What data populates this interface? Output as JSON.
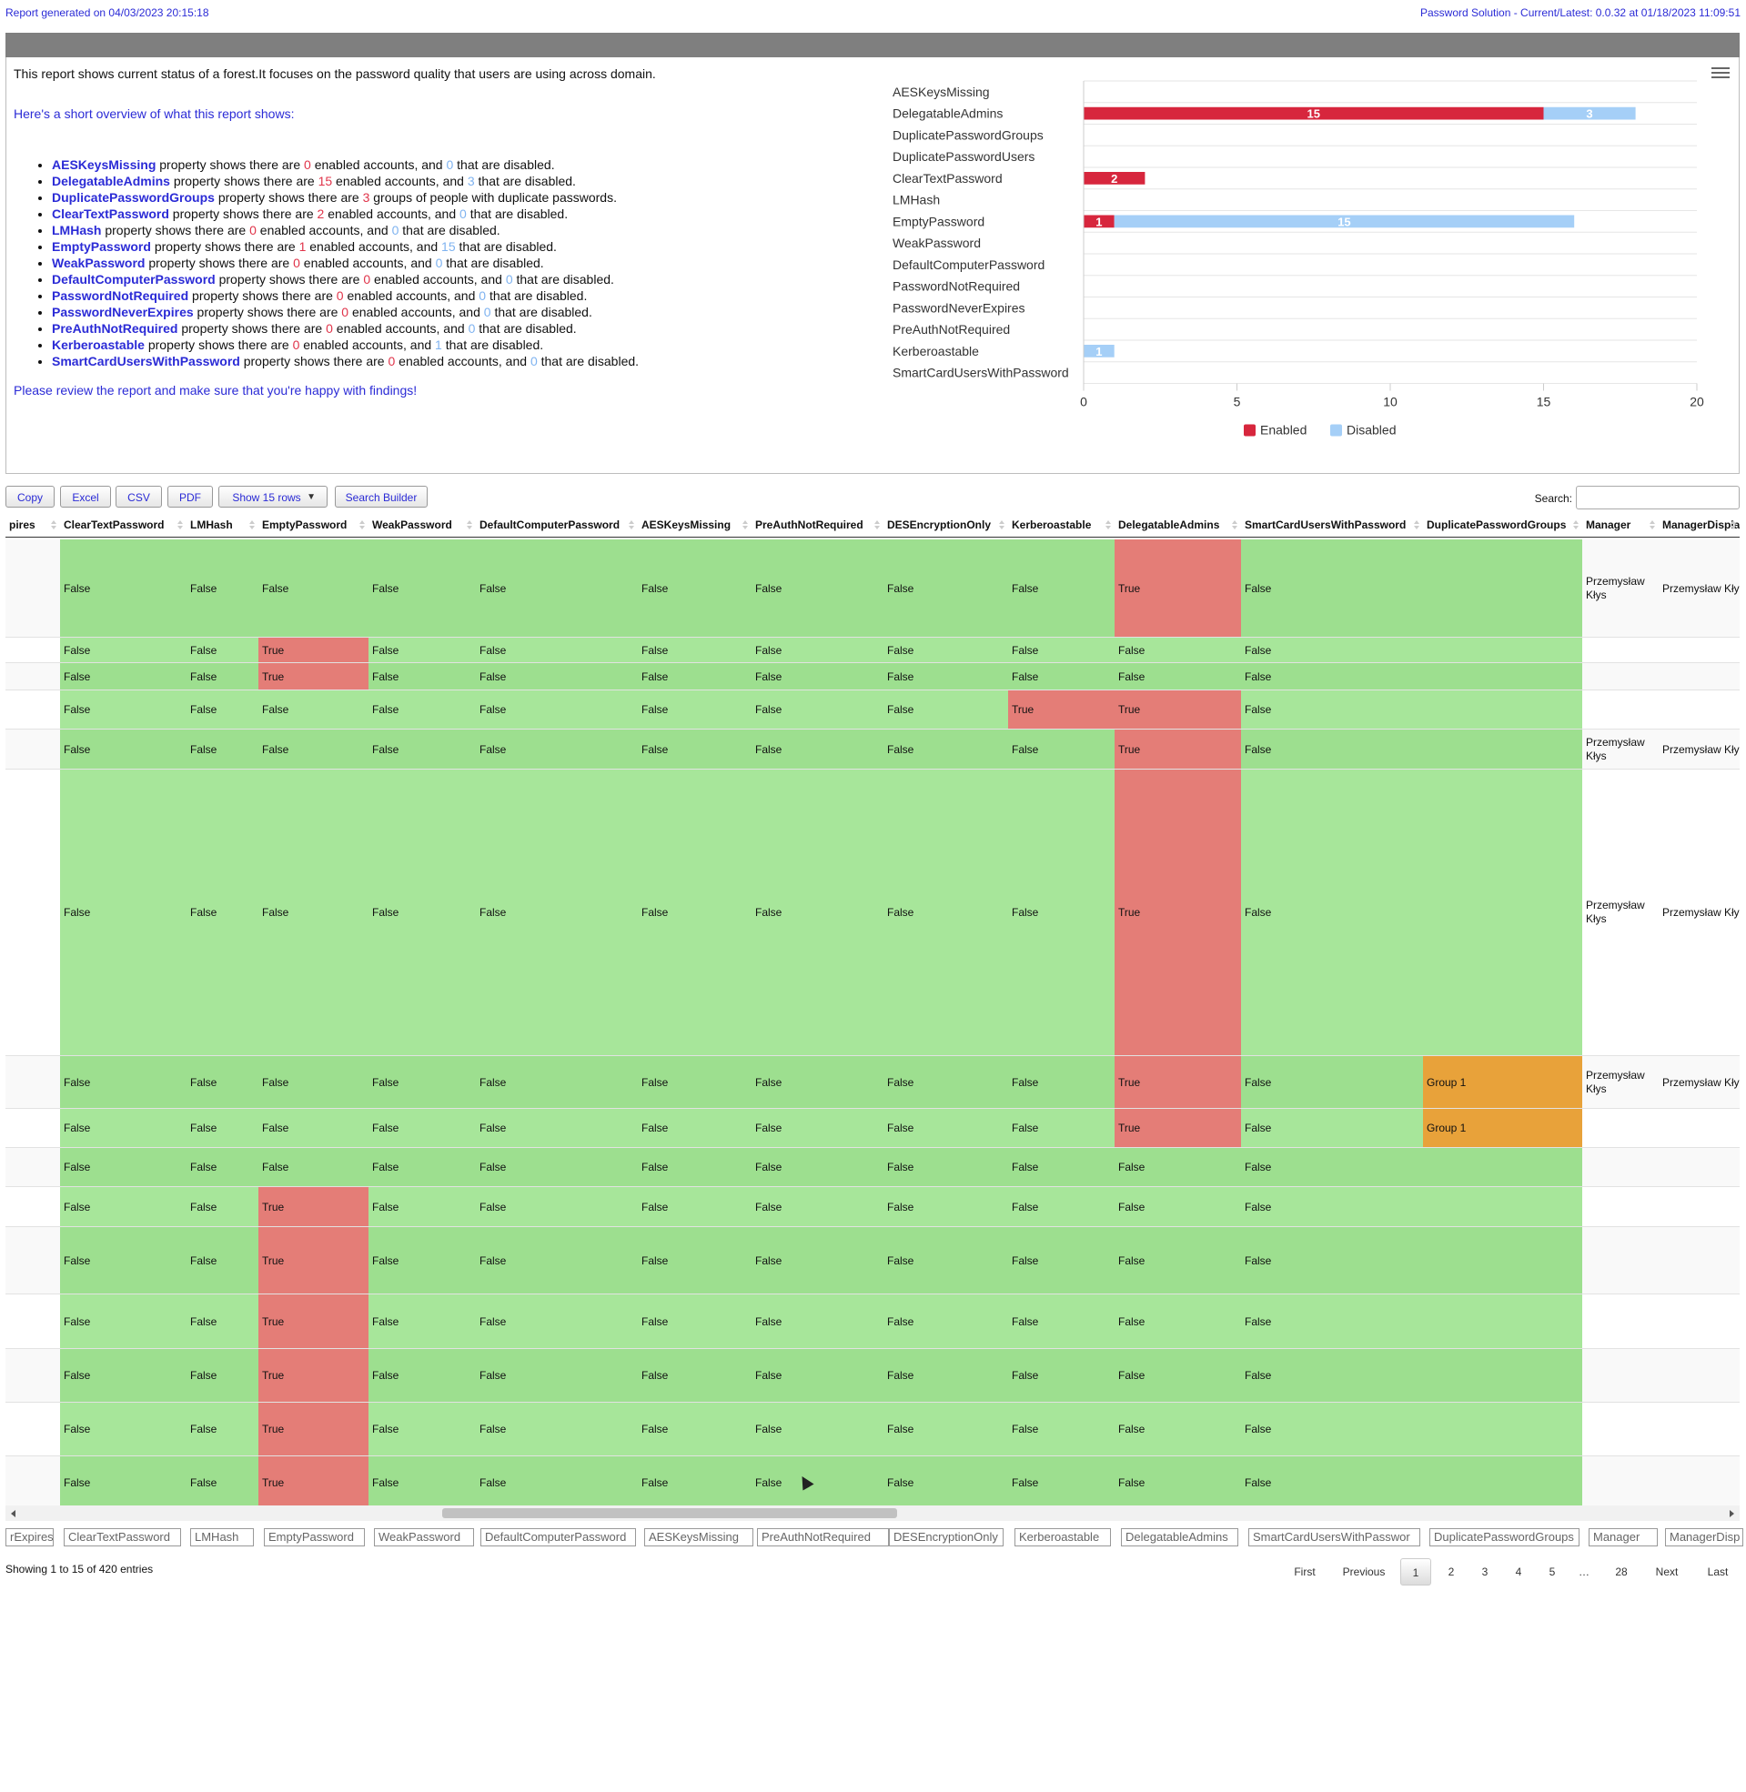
{
  "header": {
    "generated": "Report generated on 04/03/2023 20:15:18",
    "solution": "Password Solution - Current/Latest: 0.0.32 at 01/18/2023 11:09:51"
  },
  "summary": {
    "intro": "This report shows current status of a forest.It focuses on the password quality that users are using across domain.",
    "overview_heading": "Here's a short overview of what this report shows:",
    "text_property_shows": "property shows there are",
    "text_enabled_and": "enabled accounts, and",
    "text_disabled": "that are disabled.",
    "text_groups_with_dup": "groups of people with duplicate passwords.",
    "items": [
      {
        "name": "AESKeysMissing",
        "enabled": "0",
        "disabled": "0"
      },
      {
        "name": "DelegatableAdmins",
        "enabled": "15",
        "disabled": "3"
      },
      {
        "name": "DuplicatePasswordGroups",
        "groups": "3"
      },
      {
        "name": "ClearTextPassword",
        "enabled": "2",
        "disabled": "0"
      },
      {
        "name": "LMHash",
        "enabled": "0",
        "disabled": "0"
      },
      {
        "name": "EmptyPassword",
        "enabled": "1",
        "disabled": "15"
      },
      {
        "name": "WeakPassword",
        "enabled": "0",
        "disabled": "0"
      },
      {
        "name": "DefaultComputerPassword",
        "enabled": "0",
        "disabled": "0"
      },
      {
        "name": "PasswordNotRequired",
        "enabled": "0",
        "disabled": "0"
      },
      {
        "name": "PasswordNeverExpires",
        "enabled": "0",
        "disabled": "0"
      },
      {
        "name": "PreAuthNotRequired",
        "enabled": "0",
        "disabled": "0"
      },
      {
        "name": "Kerberoastable",
        "enabled": "0",
        "disabled": "1"
      },
      {
        "name": "SmartCardUsersWithPassword",
        "enabled": "0",
        "disabled": "0"
      }
    ],
    "review": "Please review the report and make sure that you're happy with findings!"
  },
  "chart_data": {
    "type": "bar",
    "orientation": "horizontal",
    "stacked": true,
    "categories": [
      "AESKeysMissing",
      "DelegatableAdmins",
      "DuplicatePasswordGroups",
      "DuplicatePasswordUsers",
      "ClearTextPassword",
      "LMHash",
      "EmptyPassword",
      "WeakPassword",
      "DefaultComputerPassword",
      "PasswordNotRequired",
      "PasswordNeverExpires",
      "PreAuthNotRequired",
      "Kerberoastable",
      "SmartCardUsersWithPassword"
    ],
    "series": [
      {
        "name": "Enabled",
        "color": "#d7263d",
        "values": [
          0,
          15,
          0,
          0,
          2,
          0,
          1,
          0,
          0,
          0,
          0,
          0,
          0,
          0
        ]
      },
      {
        "name": "Disabled",
        "color": "#a5cff7",
        "values": [
          0,
          3,
          0,
          0,
          0,
          0,
          15,
          0,
          0,
          0,
          0,
          0,
          1,
          0
        ]
      }
    ],
    "xlim": [
      0,
      20
    ],
    "xticks": [
      "0",
      "5",
      "10",
      "15",
      "20"
    ],
    "legend_position": "bottom",
    "grid": true
  },
  "menu_icon": "hamburger-menu-icon",
  "toolbar": {
    "copy": "Copy",
    "excel": "Excel",
    "csv": "CSV",
    "pdf": "PDF",
    "show_rows": "Show 15 rows",
    "search_builder": "Search Builder",
    "search_label": "Search:"
  },
  "colors": {
    "green": "#a7e69a",
    "green_dark": "#9ddf8f",
    "red": "#e47d77",
    "orange": "#e8a23a",
    "plain": "#f7f7f7"
  },
  "table": {
    "columns": [
      "pires",
      "ClearTextPassword",
      "LMHash",
      "EmptyPassword",
      "WeakPassword",
      "DefaultComputerPassword",
      "AESKeysMissing",
      "PreAuthNotRequired",
      "DESEncryptionOnly",
      "Kerberoastable",
      "DelegatableAdmins",
      "SmartCardUsersWithPassword",
      "DuplicatePasswordGroups",
      "Manager",
      "ManagerDisplay"
    ],
    "rows": [
      {
        "flags": [
          "False",
          "False",
          "False",
          "False",
          "False",
          "False",
          "False",
          "False",
          "False",
          "True",
          "False"
        ],
        "dup": "",
        "manager": "Przemysław Kłys",
        "managerDisplay": "Przemysław Kły"
      },
      {
        "flags": [
          "False",
          "False",
          "True",
          "False",
          "False",
          "False",
          "False",
          "False",
          "False",
          "False",
          "False"
        ],
        "dup": "",
        "manager": "",
        "managerDisplay": ""
      },
      {
        "flags": [
          "False",
          "False",
          "True",
          "False",
          "False",
          "False",
          "False",
          "False",
          "False",
          "False",
          "False"
        ],
        "dup": "",
        "manager": "",
        "managerDisplay": ""
      },
      {
        "flags": [
          "False",
          "False",
          "False",
          "False",
          "False",
          "False",
          "False",
          "False",
          "True",
          "True",
          "False"
        ],
        "dup": "",
        "manager": "",
        "managerDisplay": ""
      },
      {
        "flags": [
          "False",
          "False",
          "False",
          "False",
          "False",
          "False",
          "False",
          "False",
          "False",
          "True",
          "False"
        ],
        "dup": "",
        "manager": "Przemysław Kłys",
        "managerDisplay": "Przemysław Kły"
      },
      {
        "flags": [
          "False",
          "False",
          "False",
          "False",
          "False",
          "False",
          "False",
          "False",
          "False",
          "True",
          "False"
        ],
        "dup": "",
        "manager": "Przemysław Kłys",
        "managerDisplay": "Przemysław Kły"
      },
      {
        "flags": [
          "False",
          "False",
          "False",
          "False",
          "False",
          "False",
          "False",
          "False",
          "False",
          "True",
          "False"
        ],
        "dup": "Group 1",
        "manager": "Przemysław Kłys",
        "managerDisplay": "Przemysław Kły"
      },
      {
        "flags": [
          "False",
          "False",
          "False",
          "False",
          "False",
          "False",
          "False",
          "False",
          "False",
          "True",
          "False"
        ],
        "dup": "Group 1",
        "manager": "",
        "managerDisplay": ""
      },
      {
        "flags": [
          "False",
          "False",
          "False",
          "False",
          "False",
          "False",
          "False",
          "False",
          "False",
          "False",
          "False"
        ],
        "dup": "",
        "manager": "",
        "managerDisplay": ""
      },
      {
        "flags": [
          "False",
          "False",
          "True",
          "False",
          "False",
          "False",
          "False",
          "False",
          "False",
          "False",
          "False"
        ],
        "dup": "",
        "manager": "",
        "managerDisplay": ""
      },
      {
        "flags": [
          "False",
          "False",
          "True",
          "False",
          "False",
          "False",
          "False",
          "False",
          "False",
          "False",
          "False"
        ],
        "dup": "",
        "manager": "",
        "managerDisplay": ""
      },
      {
        "flags": [
          "False",
          "False",
          "True",
          "False",
          "False",
          "False",
          "False",
          "False",
          "False",
          "False",
          "False"
        ],
        "dup": "",
        "manager": "",
        "managerDisplay": ""
      },
      {
        "flags": [
          "False",
          "False",
          "True",
          "False",
          "False",
          "False",
          "False",
          "False",
          "False",
          "False",
          "False"
        ],
        "dup": "",
        "manager": "",
        "managerDisplay": ""
      },
      {
        "flags": [
          "False",
          "False",
          "True",
          "False",
          "False",
          "False",
          "False",
          "False",
          "False",
          "False",
          "False"
        ],
        "dup": "",
        "manager": "",
        "managerDisplay": ""
      },
      {
        "flags": [
          "False",
          "False",
          "True",
          "False",
          "False",
          "False",
          "False",
          "False",
          "False",
          "False",
          "False"
        ],
        "dup": "",
        "manager": "",
        "managerDisplay": ""
      }
    ],
    "filters": [
      "rExpires",
      "ClearTextPassword",
      "LMHash",
      "EmptyPassword",
      "WeakPassword",
      "DefaultComputerPassword",
      "AESKeysMissing",
      "PreAuthNotRequired",
      "DESEncryptionOnly",
      "Kerberoastable",
      "DelegatableAdmins",
      "SmartCardUsersWithPasswor",
      "DuplicatePasswordGroups",
      "Manager",
      "ManagerDisp"
    ]
  },
  "footer": {
    "info": "Showing 1 to 15 of 420 entries",
    "pagination": [
      "First",
      "Previous",
      "1",
      "2",
      "3",
      "4",
      "5",
      "…",
      "28",
      "Next",
      "Last"
    ],
    "current_page": "1"
  }
}
